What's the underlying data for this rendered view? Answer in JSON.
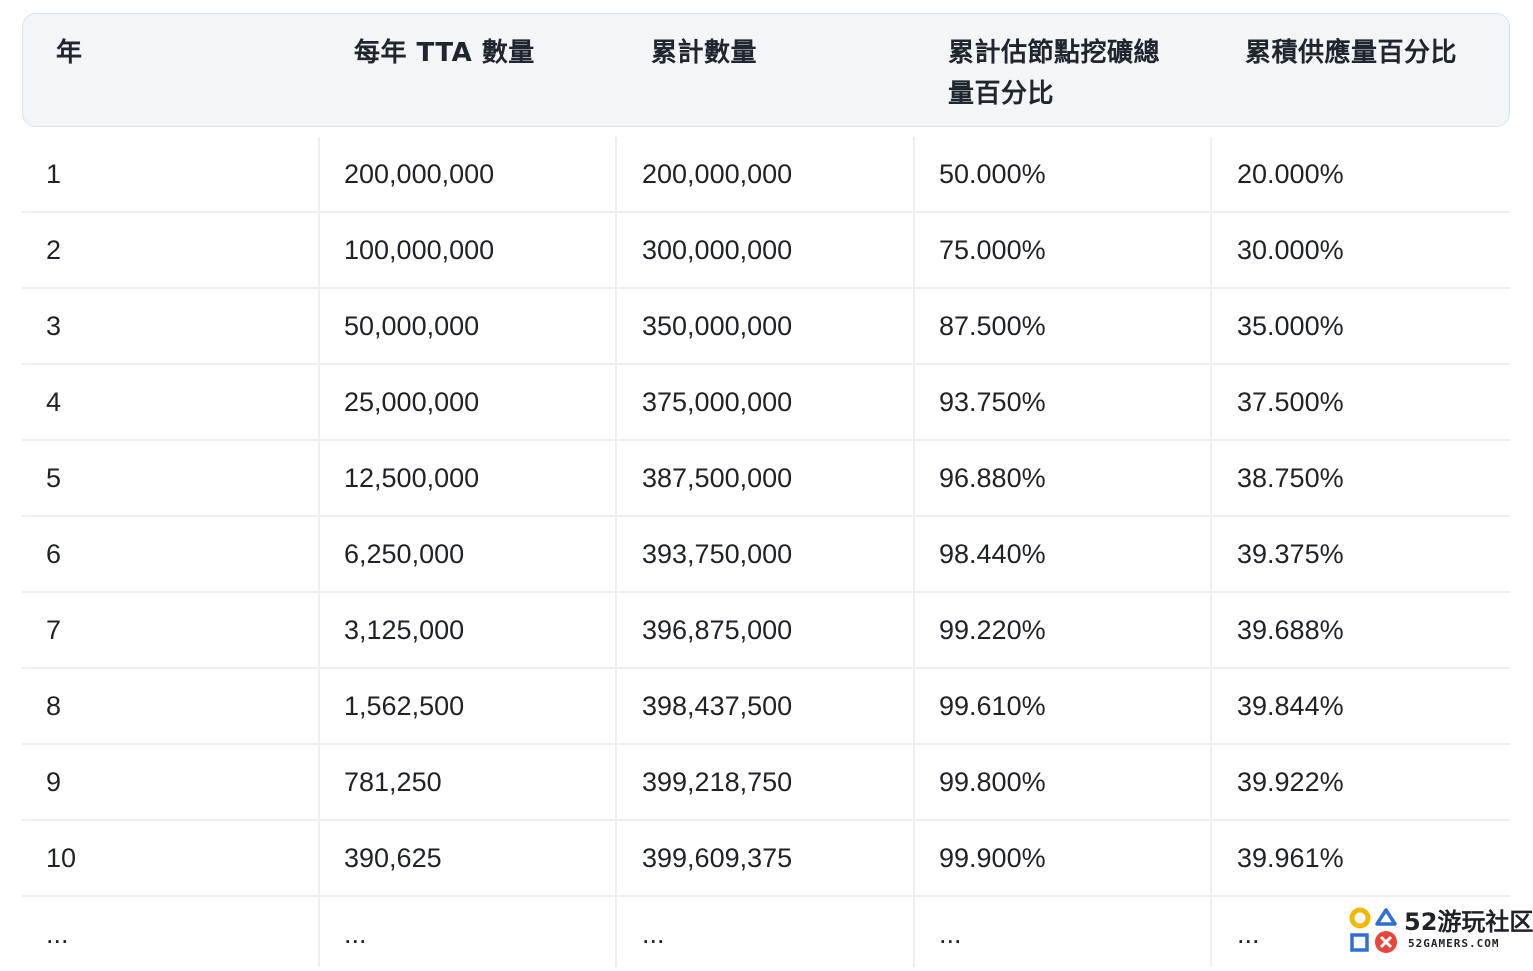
{
  "table": {
    "headers": [
      "年",
      "每年 TTA 數量",
      "累計數量",
      "累計估節點挖礦總量百分比",
      "累積供應量百分比"
    ],
    "header_lines": {
      "col4_line1": "累計估節點挖礦總",
      "col4_line2": "量百分比"
    },
    "rows": [
      [
        "1",
        "200,000,000",
        "200,000,000",
        "50.000%",
        "20.000%"
      ],
      [
        "2",
        "100,000,000",
        "300,000,000",
        "75.000%",
        "30.000%"
      ],
      [
        "3",
        "50,000,000",
        "350,000,000",
        "87.500%",
        "35.000%"
      ],
      [
        "4",
        "25,000,000",
        "375,000,000",
        "93.750%",
        "37.500%"
      ],
      [
        "5",
        "12,500,000",
        "387,500,000",
        "96.880%",
        "38.750%"
      ],
      [
        "6",
        "6,250,000",
        "393,750,000",
        "98.440%",
        "39.375%"
      ],
      [
        "7",
        "3,125,000",
        "396,875,000",
        "99.220%",
        "39.688%"
      ],
      [
        "8",
        "1,562,500",
        "398,437,500",
        "99.610%",
        "39.844%"
      ],
      [
        "9",
        "781,250",
        "399,218,750",
        "99.800%",
        "39.922%"
      ],
      [
        "10",
        "390,625",
        "399,609,375",
        "99.900%",
        "39.961%"
      ],
      [
        "...",
        "...",
        "...",
        "...",
        "..."
      ]
    ]
  },
  "watermark": {
    "title": "52游玩社区",
    "subtitle": "52GAMERS.COM",
    "colors": {
      "yellow": "#f5b800",
      "blue": "#2f6fd6",
      "red": "#e8453c"
    }
  }
}
